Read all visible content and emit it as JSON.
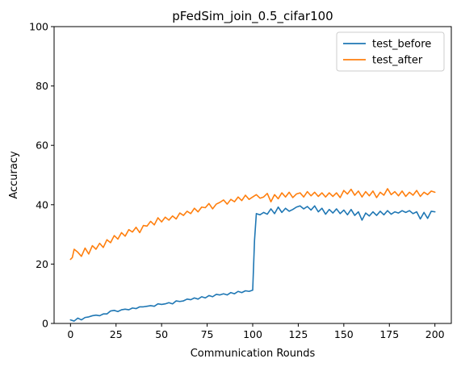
{
  "chart_data": {
    "type": "line",
    "title": "pFedSim_join_0.5_cifar100",
    "xlabel": "Communication Rounds",
    "ylabel": "Accuracy",
    "xlim": [
      -9,
      209
    ],
    "ylim": [
      0,
      100
    ],
    "xticks": [
      0,
      25,
      50,
      75,
      100,
      125,
      150,
      175,
      200
    ],
    "yticks": [
      0,
      20,
      40,
      60,
      80,
      100
    ],
    "grid": false,
    "legend_position": "upper right",
    "series": [
      {
        "name": "test_before",
        "color": "#1f77b4",
        "points": [
          [
            0,
            1.2
          ],
          [
            2,
            0.8
          ],
          [
            4,
            1.8
          ],
          [
            6,
            1.2
          ],
          [
            8,
            2.0
          ],
          [
            10,
            2.2
          ],
          [
            12,
            2.6
          ],
          [
            14,
            2.8
          ],
          [
            16,
            2.6
          ],
          [
            18,
            3.2
          ],
          [
            20,
            3.2
          ],
          [
            22,
            4.2
          ],
          [
            24,
            4.4
          ],
          [
            26,
            4.0
          ],
          [
            28,
            4.6
          ],
          [
            30,
            4.8
          ],
          [
            32,
            4.6
          ],
          [
            34,
            5.2
          ],
          [
            36,
            5.0
          ],
          [
            38,
            5.6
          ],
          [
            40,
            5.6
          ],
          [
            42,
            5.8
          ],
          [
            44,
            6.0
          ],
          [
            46,
            5.8
          ],
          [
            48,
            6.6
          ],
          [
            50,
            6.4
          ],
          [
            52,
            6.6
          ],
          [
            54,
            7.0
          ],
          [
            56,
            6.6
          ],
          [
            58,
            7.6
          ],
          [
            60,
            7.4
          ],
          [
            62,
            7.6
          ],
          [
            64,
            8.2
          ],
          [
            66,
            8.0
          ],
          [
            68,
            8.6
          ],
          [
            70,
            8.2
          ],
          [
            72,
            9.0
          ],
          [
            74,
            8.6
          ],
          [
            76,
            9.4
          ],
          [
            78,
            9.0
          ],
          [
            80,
            9.8
          ],
          [
            82,
            9.6
          ],
          [
            84,
            10.0
          ],
          [
            86,
            9.6
          ],
          [
            88,
            10.4
          ],
          [
            90,
            10.0
          ],
          [
            92,
            10.8
          ],
          [
            94,
            10.4
          ],
          [
            96,
            11.0
          ],
          [
            98,
            10.8
          ],
          [
            100,
            11.2
          ],
          [
            101,
            28.0
          ],
          [
            102,
            37.0
          ],
          [
            104,
            36.6
          ],
          [
            106,
            37.4
          ],
          [
            108,
            36.8
          ],
          [
            110,
            38.6
          ],
          [
            112,
            37.0
          ],
          [
            114,
            39.2
          ],
          [
            116,
            37.4
          ],
          [
            118,
            38.8
          ],
          [
            120,
            37.8
          ],
          [
            122,
            38.4
          ],
          [
            124,
            39.2
          ],
          [
            126,
            39.6
          ],
          [
            128,
            38.6
          ],
          [
            130,
            39.4
          ],
          [
            132,
            38.2
          ],
          [
            134,
            39.6
          ],
          [
            136,
            37.6
          ],
          [
            138,
            38.8
          ],
          [
            140,
            36.8
          ],
          [
            142,
            38.4
          ],
          [
            144,
            37.2
          ],
          [
            146,
            38.6
          ],
          [
            148,
            37.0
          ],
          [
            150,
            38.2
          ],
          [
            152,
            36.6
          ],
          [
            154,
            38.4
          ],
          [
            156,
            36.4
          ],
          [
            158,
            37.6
          ],
          [
            160,
            34.8
          ],
          [
            162,
            37.2
          ],
          [
            164,
            36.2
          ],
          [
            166,
            37.6
          ],
          [
            168,
            36.4
          ],
          [
            170,
            37.8
          ],
          [
            172,
            36.6
          ],
          [
            174,
            38.0
          ],
          [
            176,
            36.8
          ],
          [
            178,
            37.6
          ],
          [
            180,
            37.2
          ],
          [
            182,
            38.0
          ],
          [
            184,
            37.4
          ],
          [
            186,
            38.0
          ],
          [
            188,
            37.0
          ],
          [
            190,
            37.6
          ],
          [
            192,
            35.2
          ],
          [
            194,
            37.4
          ],
          [
            196,
            35.4
          ],
          [
            198,
            37.8
          ],
          [
            200,
            37.6
          ]
        ]
      },
      {
        "name": "test_after",
        "color": "#ff7f0e",
        "points": [
          [
            0,
            21.6
          ],
          [
            1,
            22.2
          ],
          [
            2,
            25.0
          ],
          [
            4,
            24.0
          ],
          [
            6,
            22.6
          ],
          [
            8,
            25.4
          ],
          [
            10,
            23.4
          ],
          [
            12,
            26.2
          ],
          [
            14,
            25.0
          ],
          [
            16,
            27.0
          ],
          [
            18,
            25.6
          ],
          [
            20,
            28.2
          ],
          [
            22,
            27.2
          ],
          [
            24,
            29.6
          ],
          [
            26,
            28.4
          ],
          [
            28,
            30.6
          ],
          [
            30,
            29.4
          ],
          [
            32,
            31.6
          ],
          [
            34,
            30.8
          ],
          [
            36,
            32.4
          ],
          [
            38,
            30.6
          ],
          [
            40,
            33.0
          ],
          [
            42,
            32.8
          ],
          [
            44,
            34.4
          ],
          [
            46,
            33.2
          ],
          [
            48,
            35.6
          ],
          [
            50,
            34.2
          ],
          [
            52,
            35.8
          ],
          [
            54,
            34.8
          ],
          [
            56,
            36.2
          ],
          [
            58,
            35.2
          ],
          [
            60,
            37.2
          ],
          [
            62,
            36.4
          ],
          [
            64,
            37.8
          ],
          [
            66,
            37.0
          ],
          [
            68,
            38.8
          ],
          [
            70,
            37.6
          ],
          [
            72,
            39.2
          ],
          [
            74,
            39.0
          ],
          [
            76,
            40.4
          ],
          [
            78,
            38.6
          ],
          [
            80,
            40.2
          ],
          [
            82,
            40.8
          ],
          [
            84,
            41.6
          ],
          [
            86,
            40.2
          ],
          [
            88,
            41.8
          ],
          [
            90,
            41.0
          ],
          [
            92,
            42.6
          ],
          [
            94,
            41.4
          ],
          [
            96,
            43.2
          ],
          [
            98,
            41.8
          ],
          [
            100,
            42.6
          ],
          [
            102,
            43.4
          ],
          [
            104,
            42.2
          ],
          [
            106,
            42.6
          ],
          [
            108,
            43.8
          ],
          [
            110,
            41.0
          ],
          [
            112,
            43.4
          ],
          [
            114,
            42.0
          ],
          [
            116,
            44.0
          ],
          [
            118,
            42.6
          ],
          [
            120,
            44.2
          ],
          [
            122,
            42.4
          ],
          [
            124,
            43.6
          ],
          [
            126,
            44.0
          ],
          [
            128,
            42.6
          ],
          [
            130,
            44.4
          ],
          [
            132,
            43.0
          ],
          [
            134,
            44.2
          ],
          [
            136,
            42.8
          ],
          [
            138,
            44.0
          ],
          [
            140,
            42.6
          ],
          [
            142,
            44.0
          ],
          [
            144,
            42.8
          ],
          [
            146,
            44.0
          ],
          [
            148,
            42.4
          ],
          [
            150,
            44.8
          ],
          [
            152,
            43.6
          ],
          [
            154,
            45.2
          ],
          [
            156,
            43.2
          ],
          [
            158,
            44.6
          ],
          [
            160,
            42.6
          ],
          [
            162,
            44.4
          ],
          [
            164,
            43.0
          ],
          [
            166,
            44.6
          ],
          [
            168,
            42.4
          ],
          [
            170,
            44.2
          ],
          [
            172,
            43.2
          ],
          [
            174,
            45.4
          ],
          [
            176,
            43.4
          ],
          [
            178,
            44.4
          ],
          [
            180,
            43.0
          ],
          [
            182,
            44.6
          ],
          [
            184,
            42.8
          ],
          [
            186,
            44.2
          ],
          [
            188,
            43.2
          ],
          [
            190,
            44.8
          ],
          [
            192,
            42.8
          ],
          [
            194,
            44.2
          ],
          [
            196,
            43.4
          ],
          [
            198,
            44.6
          ],
          [
            200,
            44.2
          ]
        ]
      }
    ]
  }
}
